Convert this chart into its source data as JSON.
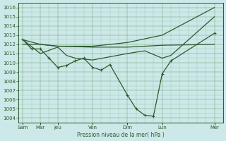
{
  "title": "",
  "xlabel": "Pression niveau de la mer( hPa )",
  "background_color": "#cce8e8",
  "grid_color": "#4a8a4a",
  "line_color": "#2d5a2d",
  "ylim": [
    1003.5,
    1016.5
  ],
  "yticks": [
    1004,
    1005,
    1006,
    1007,
    1008,
    1009,
    1010,
    1011,
    1012,
    1013,
    1014,
    1015,
    1016
  ],
  "xtick_labels": [
    "Sam",
    "Mar",
    "Jeu",
    "Ven",
    "Dim",
    "Lun",
    "Mer"
  ],
  "xtick_positions": [
    0,
    2,
    4,
    8,
    12,
    16,
    22
  ],
  "xlim": [
    -0.5,
    23
  ],
  "series": [
    {
      "x": [
        0,
        2,
        4,
        8,
        12,
        16,
        22
      ],
      "y": [
        1012.0,
        1012.0,
        1011.8,
        1011.7,
        1011.7,
        1011.9,
        1012.0
      ],
      "marker": false,
      "lw": 0.9
    },
    {
      "x": [
        0,
        2,
        4,
        8,
        12,
        16,
        22
      ],
      "y": [
        1012.5,
        1012.0,
        1011.8,
        1011.8,
        1012.2,
        1013.0,
        1016.0
      ],
      "marker": false,
      "lw": 0.9
    },
    {
      "x": [
        0,
        2,
        4,
        5,
        6,
        8,
        12,
        14,
        16,
        17,
        22
      ],
      "y": [
        1012.5,
        1011.0,
        1011.7,
        1010.8,
        1010.5,
        1010.3,
        1011.0,
        1011.3,
        1010.5,
        1010.8,
        1015.0
      ],
      "marker": false,
      "lw": 0.9
    },
    {
      "x": [
        0,
        1,
        2,
        3,
        4,
        5,
        6,
        7,
        8,
        9,
        10,
        12,
        13,
        14,
        15,
        16,
        17,
        22
      ],
      "y": [
        1012.5,
        1011.5,
        1011.5,
        1010.5,
        1009.5,
        1009.7,
        1010.2,
        1010.5,
        1009.5,
        1009.2,
        1009.8,
        1006.5,
        1005.0,
        1004.3,
        1004.2,
        1008.8,
        1010.2,
        1013.2
      ],
      "marker": true,
      "lw": 0.9
    }
  ]
}
